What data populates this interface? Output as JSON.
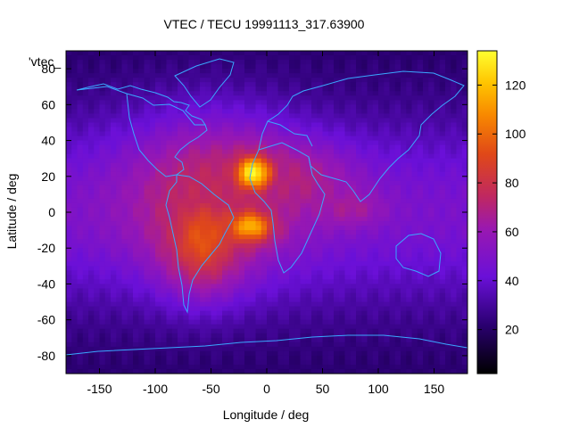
{
  "chart_data": {
    "type": "heatmap",
    "title": "VTEC / TECU 19991113_317.63900",
    "xlabel": "Longitude / deg",
    "ylabel": "Latitude / deg",
    "xlim": [
      -180,
      180
    ],
    "ylim": [
      -90,
      90
    ],
    "x_ticks": [
      -150,
      -100,
      -50,
      0,
      50,
      100,
      150
    ],
    "y_ticks": [
      -80,
      -60,
      -40,
      -20,
      0,
      20,
      40,
      60,
      80
    ],
    "colorbar": {
      "range": [
        2,
        134
      ],
      "ticks": [
        20,
        40,
        60,
        80,
        100,
        120
      ]
    },
    "overlay_label": "'vtec_",
    "colors": {
      "coast": "#3aa8ff",
      "frame": "#000000"
    },
    "blobs": [
      {
        "lon": -12,
        "lat": 22,
        "value": 132,
        "w_lon": 14,
        "w_lat": 8
      },
      {
        "lon": -15,
        "lat": -8,
        "value": 118,
        "w_lon": 16,
        "w_lat": 7
      },
      {
        "lon": -58,
        "lat": -15,
        "value": 95,
        "w_lon": 25,
        "w_lat": 20
      },
      {
        "lon": -50,
        "lat": 10,
        "value": 75,
        "w_lon": 55,
        "w_lat": 30
      },
      {
        "lon": 20,
        "lat": 18,
        "value": 70,
        "w_lon": 40,
        "w_lat": 14
      },
      {
        "lon": 75,
        "lat": 2,
        "value": 66,
        "w_lon": 20,
        "w_lat": 7
      }
    ],
    "background": {
      "equator_peak": 48,
      "pole_min": 20,
      "lat_width": 38
    }
  }
}
